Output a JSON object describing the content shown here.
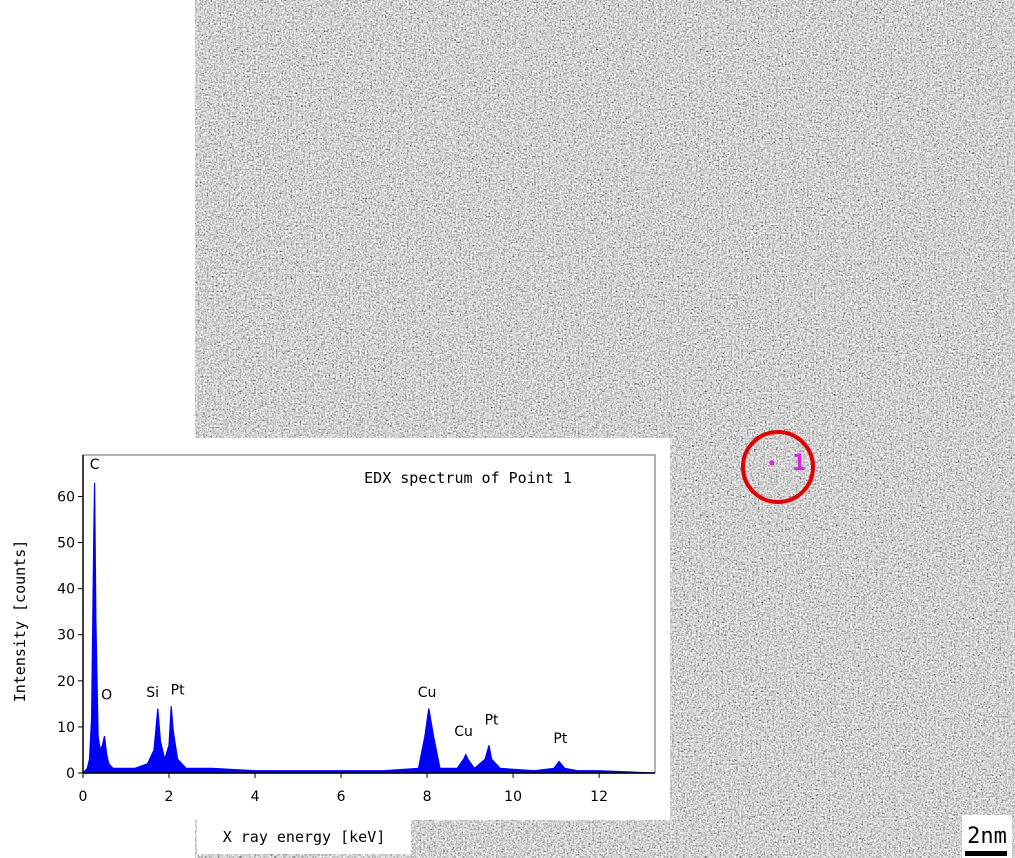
{
  "chart_data": {
    "type": "area",
    "title": "EDX spectrum of Point 1",
    "x_label": "X ray energy [keV]",
    "y_label": "Intensity [counts]",
    "x": [
      0,
      0.1,
      0.15,
      0.2,
      0.25,
      0.27,
      0.3,
      0.35,
      0.4,
      0.45,
      0.5,
      0.55,
      0.6,
      0.7,
      0.9,
      1.2,
      1.5,
      1.65,
      1.74,
      1.8,
      1.9,
      2.0,
      2.05,
      2.1,
      2.2,
      2.4,
      2.6,
      3,
      4,
      5,
      6,
      7,
      7.8,
      7.95,
      8.04,
      8.15,
      8.3,
      8.7,
      8.85,
      8.9,
      8.95,
      9.1,
      9.35,
      9.44,
      9.5,
      9.7,
      10.5,
      10.95,
      11.07,
      11.2,
      11.5,
      12,
      13.3
    ],
    "values": [
      0,
      1,
      3,
      12,
      52,
      63,
      33,
      8,
      5,
      6,
      8,
      4,
      2,
      1,
      1,
      1,
      2,
      5,
      14,
      7,
      3,
      6,
      14.5,
      9,
      3,
      1,
      1,
      1,
      0.5,
      0.5,
      0.5,
      0.5,
      1,
      8,
      14,
      8,
      1,
      1,
      3,
      4,
      3,
      1,
      3,
      6,
      3,
      1,
      0.5,
      1,
      2.5,
      1,
      0.5,
      0.5,
      0
    ],
    "color": "#0000ff",
    "xlim": [
      0,
      13.3
    ],
    "xticks": [
      0,
      2,
      4,
      6,
      8,
      10,
      12
    ],
    "ylim": [
      0,
      69
    ],
    "yticks": [
      0,
      10,
      20,
      30,
      40,
      50,
      60
    ],
    "annotations": [
      {
        "text": "C",
        "x": 0.27,
        "y": 66
      },
      {
        "text": "O",
        "x": 0.55,
        "y": 16
      },
      {
        "text": "Si",
        "x": 1.62,
        "y": 16.5
      },
      {
        "text": "Pt",
        "x": 2.2,
        "y": 17
      },
      {
        "text": "Cu",
        "x": 8.0,
        "y": 16.5
      },
      {
        "text": "Cu",
        "x": 8.85,
        "y": 8
      },
      {
        "text": "Pt",
        "x": 9.5,
        "y": 10.5
      },
      {
        "text": "Pt",
        "x": 11.1,
        "y": 6.5
      }
    ]
  },
  "image": {
    "point_label": "1",
    "scale_bar": "2nm"
  }
}
